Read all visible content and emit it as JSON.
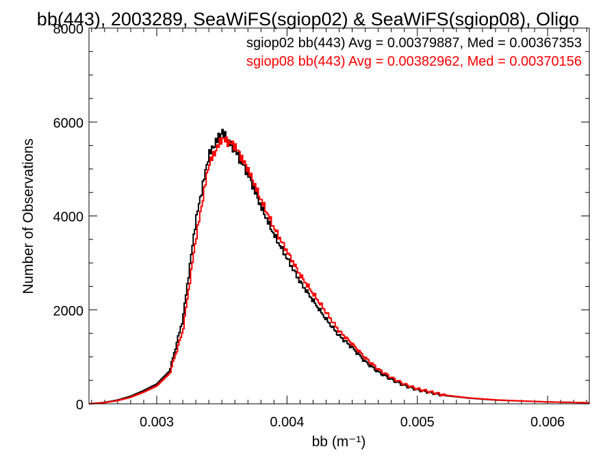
{
  "chart_data": {
    "type": "line",
    "title": "bb(443), 2003289, SeaWiFS(sgiop02) & SeaWiFS(sgiop08), Oligo",
    "xlabel": "bb (m⁻¹)",
    "ylabel": "Number of Observations",
    "xlim": [
      0.00248,
      0.00632
    ],
    "ylim": [
      0,
      8000
    ],
    "xticks": [
      0.003,
      0.004,
      0.005,
      0.006
    ],
    "yticks": [
      0,
      2000,
      4000,
      6000,
      8000
    ],
    "xtick_labels": [
      "0.003",
      "0.004",
      "0.005",
      "0.006"
    ],
    "ytick_labels": [
      "0",
      "2000",
      "4000",
      "6000",
      "8000"
    ],
    "grid": false,
    "legend_position": "top-right",
    "annotations": [
      "sgiop02 bb(443) Avg = 0.00379887, Med = 0.00367353",
      "sgiop08 bb(443) Avg = 0.00382962, Med = 0.00370156"
    ],
    "series": [
      {
        "color": "#000000",
        "x": [
          0.00248,
          0.0026,
          0.0027,
          0.0028,
          0.0029,
          0.003,
          0.0031,
          0.0032,
          0.0033,
          0.0034,
          0.0035,
          0.0036,
          0.0037,
          0.0038,
          0.0039,
          0.004,
          0.0041,
          0.0042,
          0.0043,
          0.0044,
          0.0045,
          0.0046,
          0.0047,
          0.0048,
          0.0049,
          0.005,
          0.0052,
          0.0054,
          0.0056,
          0.0058,
          0.006,
          0.0062,
          0.00632
        ],
        "y": [
          0,
          30,
          80,
          160,
          280,
          420,
          700,
          1800,
          3900,
          5300,
          5800,
          5400,
          4900,
          4200,
          3600,
          3100,
          2600,
          2200,
          1800,
          1450,
          1200,
          900,
          680,
          520,
          390,
          300,
          180,
          120,
          80,
          60,
          40,
          30,
          20
        ]
      },
      {
        "color": "#ff0000",
        "x": [
          0.00248,
          0.0026,
          0.0027,
          0.0028,
          0.0029,
          0.003,
          0.0031,
          0.0032,
          0.0033,
          0.0034,
          0.0035,
          0.0036,
          0.0037,
          0.0038,
          0.0039,
          0.004,
          0.0041,
          0.0042,
          0.0043,
          0.0044,
          0.0045,
          0.0046,
          0.0047,
          0.0048,
          0.0049,
          0.005,
          0.0052,
          0.0054,
          0.0056,
          0.0058,
          0.006,
          0.0062,
          0.00632
        ],
        "y": [
          0,
          25,
          70,
          140,
          250,
          380,
          650,
          1550,
          3500,
          5100,
          5650,
          5500,
          5000,
          4350,
          3750,
          3250,
          2750,
          2350,
          1950,
          1550,
          1280,
          980,
          740,
          560,
          420,
          320,
          190,
          125,
          85,
          60,
          40,
          30,
          20
        ]
      }
    ]
  }
}
